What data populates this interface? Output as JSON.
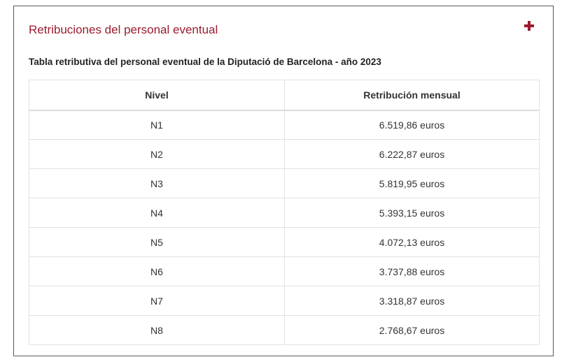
{
  "panel": {
    "title": "Retribuciones del personal eventual",
    "expand_icon": "plus-icon",
    "accent_color": "#9b1b30"
  },
  "table": {
    "caption": "Tabla retributiva del personal eventual de la Diputació de Barcelona - año 2023",
    "headers": {
      "nivel": "Nivel",
      "retribucion": "Retribución mensual"
    },
    "rows": [
      {
        "nivel": "N1",
        "retribucion": "6.519,86 euros"
      },
      {
        "nivel": "N2",
        "retribucion": "6.222,87 euros"
      },
      {
        "nivel": "N3",
        "retribucion": "5.819,95 euros"
      },
      {
        "nivel": "N4",
        "retribucion": "5.393,15 euros"
      },
      {
        "nivel": "N5",
        "retribucion": "4.072,13 euros"
      },
      {
        "nivel": "N6",
        "retribucion": "3.737,88 euros"
      },
      {
        "nivel": "N7",
        "retribucion": "3.318,87 euros"
      },
      {
        "nivel": "N8",
        "retribucion": "2.768,67 euros"
      }
    ]
  }
}
